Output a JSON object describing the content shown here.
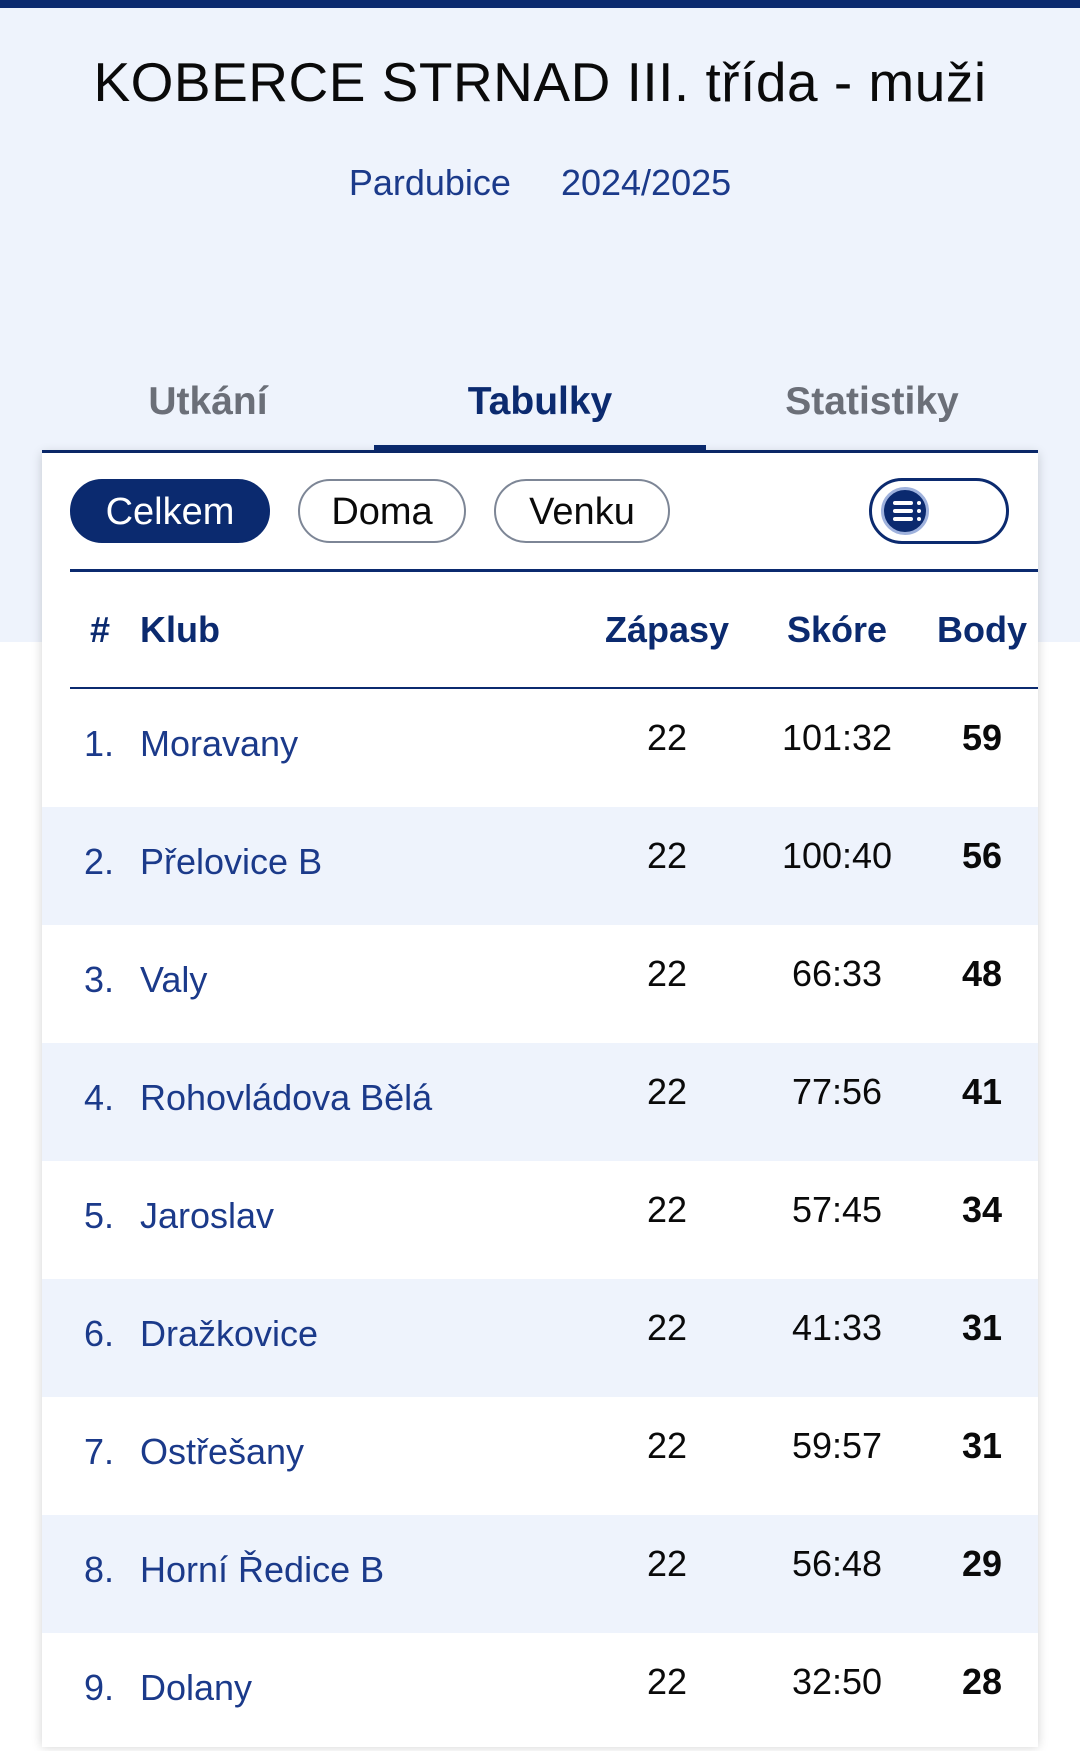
{
  "header": {
    "title": "KOBERCE STRNAD III. třída - muži",
    "region": "Pardubice",
    "season": "2024/2025"
  },
  "tabs": [
    {
      "label": "Utkání",
      "active": false
    },
    {
      "label": "Tabulky",
      "active": true
    },
    {
      "label": "Statistiky",
      "active": false
    }
  ],
  "filters": [
    {
      "label": "Celkem",
      "active": true
    },
    {
      "label": "Doma",
      "active": false
    },
    {
      "label": "Venku",
      "active": false
    }
  ],
  "view_toggle": {
    "icon": "list-icon"
  },
  "table": {
    "headers": {
      "rank": "#",
      "club": "Klub",
      "games": "Zápasy",
      "score": "Skóre",
      "points": "Body"
    },
    "rows": [
      {
        "rank": "1.",
        "club": "Moravany",
        "games": "22",
        "score": "101:32",
        "points": "59"
      },
      {
        "rank": "2.",
        "club": "Přelovice B",
        "games": "22",
        "score": "100:40",
        "points": "56"
      },
      {
        "rank": "3.",
        "club": "Valy",
        "games": "22",
        "score": "66:33",
        "points": "48"
      },
      {
        "rank": "4.",
        "club": "Rohovládova Bělá",
        "games": "22",
        "score": "77:56",
        "points": "41"
      },
      {
        "rank": "5.",
        "club": "Jaroslav",
        "games": "22",
        "score": "57:45",
        "points": "34"
      },
      {
        "rank": "6.",
        "club": "Dražkovice",
        "games": "22",
        "score": "41:33",
        "points": "31"
      },
      {
        "rank": "7.",
        "club": "Ostřešany",
        "games": "22",
        "score": "59:57",
        "points": "31"
      },
      {
        "rank": "8.",
        "club": "Horní Ředice B",
        "games": "22",
        "score": "56:48",
        "points": "29"
      },
      {
        "rank": "9.",
        "club": "Dolany",
        "games": "22",
        "score": "32:50",
        "points": "28"
      }
    ]
  },
  "colors": {
    "primary": "#0b2a6f",
    "hero_bg": "#eef3fc",
    "row_shade": "#eef3fc"
  }
}
